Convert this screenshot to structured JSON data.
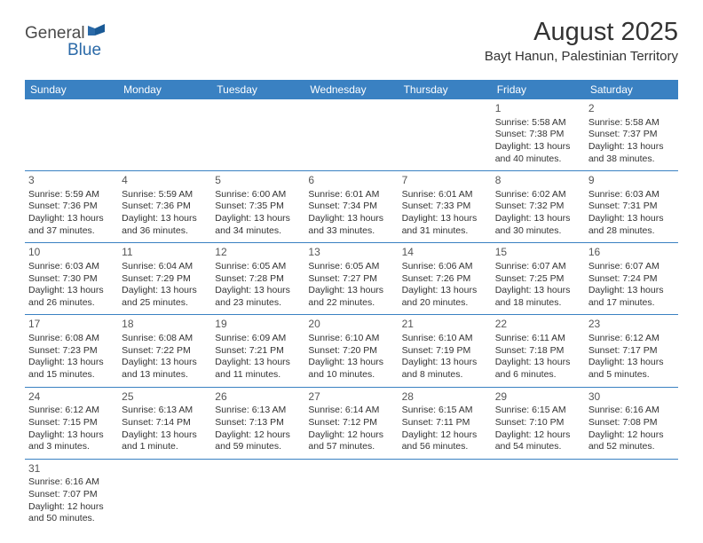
{
  "brand": {
    "part1": "General",
    "part2": "Blue"
  },
  "title": "August 2025",
  "location": "Bayt Hanun, Palestinian Territory",
  "colors": {
    "header_bg": "#3a81c2",
    "header_text": "#ffffff",
    "border": "#3a81c2",
    "logo_gray": "#4a4a4a",
    "logo_blue": "#2b6aa8"
  },
  "daysOfWeek": [
    "Sunday",
    "Monday",
    "Tuesday",
    "Wednesday",
    "Thursday",
    "Friday",
    "Saturday"
  ],
  "weeks": [
    [
      null,
      null,
      null,
      null,
      null,
      {
        "n": "1",
        "sr": "5:58 AM",
        "ss": "7:38 PM",
        "dl": "13 hours and 40 minutes."
      },
      {
        "n": "2",
        "sr": "5:58 AM",
        "ss": "7:37 PM",
        "dl": "13 hours and 38 minutes."
      }
    ],
    [
      {
        "n": "3",
        "sr": "5:59 AM",
        "ss": "7:36 PM",
        "dl": "13 hours and 37 minutes."
      },
      {
        "n": "4",
        "sr": "5:59 AM",
        "ss": "7:36 PM",
        "dl": "13 hours and 36 minutes."
      },
      {
        "n": "5",
        "sr": "6:00 AM",
        "ss": "7:35 PM",
        "dl": "13 hours and 34 minutes."
      },
      {
        "n": "6",
        "sr": "6:01 AM",
        "ss": "7:34 PM",
        "dl": "13 hours and 33 minutes."
      },
      {
        "n": "7",
        "sr": "6:01 AM",
        "ss": "7:33 PM",
        "dl": "13 hours and 31 minutes."
      },
      {
        "n": "8",
        "sr": "6:02 AM",
        "ss": "7:32 PM",
        "dl": "13 hours and 30 minutes."
      },
      {
        "n": "9",
        "sr": "6:03 AM",
        "ss": "7:31 PM",
        "dl": "13 hours and 28 minutes."
      }
    ],
    [
      {
        "n": "10",
        "sr": "6:03 AM",
        "ss": "7:30 PM",
        "dl": "13 hours and 26 minutes."
      },
      {
        "n": "11",
        "sr": "6:04 AM",
        "ss": "7:29 PM",
        "dl": "13 hours and 25 minutes."
      },
      {
        "n": "12",
        "sr": "6:05 AM",
        "ss": "7:28 PM",
        "dl": "13 hours and 23 minutes."
      },
      {
        "n": "13",
        "sr": "6:05 AM",
        "ss": "7:27 PM",
        "dl": "13 hours and 22 minutes."
      },
      {
        "n": "14",
        "sr": "6:06 AM",
        "ss": "7:26 PM",
        "dl": "13 hours and 20 minutes."
      },
      {
        "n": "15",
        "sr": "6:07 AM",
        "ss": "7:25 PM",
        "dl": "13 hours and 18 minutes."
      },
      {
        "n": "16",
        "sr": "6:07 AM",
        "ss": "7:24 PM",
        "dl": "13 hours and 17 minutes."
      }
    ],
    [
      {
        "n": "17",
        "sr": "6:08 AM",
        "ss": "7:23 PM",
        "dl": "13 hours and 15 minutes."
      },
      {
        "n": "18",
        "sr": "6:08 AM",
        "ss": "7:22 PM",
        "dl": "13 hours and 13 minutes."
      },
      {
        "n": "19",
        "sr": "6:09 AM",
        "ss": "7:21 PM",
        "dl": "13 hours and 11 minutes."
      },
      {
        "n": "20",
        "sr": "6:10 AM",
        "ss": "7:20 PM",
        "dl": "13 hours and 10 minutes."
      },
      {
        "n": "21",
        "sr": "6:10 AM",
        "ss": "7:19 PM",
        "dl": "13 hours and 8 minutes."
      },
      {
        "n": "22",
        "sr": "6:11 AM",
        "ss": "7:18 PM",
        "dl": "13 hours and 6 minutes."
      },
      {
        "n": "23",
        "sr": "6:12 AM",
        "ss": "7:17 PM",
        "dl": "13 hours and 5 minutes."
      }
    ],
    [
      {
        "n": "24",
        "sr": "6:12 AM",
        "ss": "7:15 PM",
        "dl": "13 hours and 3 minutes."
      },
      {
        "n": "25",
        "sr": "6:13 AM",
        "ss": "7:14 PM",
        "dl": "13 hours and 1 minute."
      },
      {
        "n": "26",
        "sr": "6:13 AM",
        "ss": "7:13 PM",
        "dl": "12 hours and 59 minutes."
      },
      {
        "n": "27",
        "sr": "6:14 AM",
        "ss": "7:12 PM",
        "dl": "12 hours and 57 minutes."
      },
      {
        "n": "28",
        "sr": "6:15 AM",
        "ss": "7:11 PM",
        "dl": "12 hours and 56 minutes."
      },
      {
        "n": "29",
        "sr": "6:15 AM",
        "ss": "7:10 PM",
        "dl": "12 hours and 54 minutes."
      },
      {
        "n": "30",
        "sr": "6:16 AM",
        "ss": "7:08 PM",
        "dl": "12 hours and 52 minutes."
      }
    ],
    [
      {
        "n": "31",
        "sr": "6:16 AM",
        "ss": "7:07 PM",
        "dl": "12 hours and 50 minutes."
      },
      null,
      null,
      null,
      null,
      null,
      null
    ]
  ],
  "labels": {
    "sunrise": "Sunrise:",
    "sunset": "Sunset:",
    "daylight": "Daylight:"
  }
}
